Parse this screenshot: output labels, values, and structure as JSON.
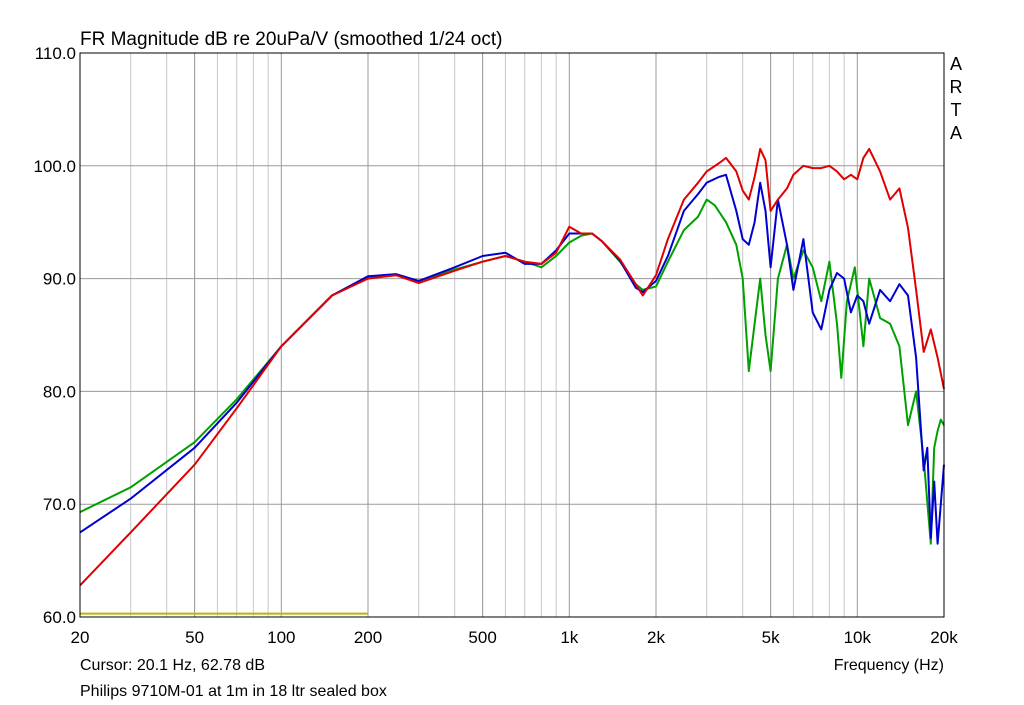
{
  "chart_data": {
    "type": "line",
    "title": "FR Magnitude dB re 20uPa/V (smoothed 1/24 oct)",
    "xlabel": "Frequency (Hz)",
    "ylabel": "",
    "x_scale": "log",
    "xlim": [
      20,
      20000
    ],
    "ylim": [
      60,
      110
    ],
    "grid": true,
    "x_ticks": [
      20,
      50,
      100,
      200,
      500,
      1000,
      2000,
      5000,
      10000,
      20000
    ],
    "x_tick_labels": [
      "20",
      "50",
      "100",
      "200",
      "500",
      "1k",
      "2k",
      "5k",
      "10k",
      "20k"
    ],
    "y_ticks": [
      60,
      70,
      80,
      90,
      100,
      110
    ],
    "y_tick_labels": [
      "60.0",
      "70.0",
      "80.0",
      "90.0",
      "100.0",
      "110.0"
    ],
    "brand": [
      "A",
      "R",
      "T",
      "A"
    ],
    "cursor_text": "Cursor: 20.1 Hz, 62.78 dB",
    "caption": "Philips 9710M-01 at 1m in 18 ltr sealed box",
    "series": [
      {
        "color": "#00a000",
        "points": [
          [
            20,
            69.3
          ],
          [
            30,
            71.5
          ],
          [
            50,
            75.5
          ],
          [
            70,
            79.3
          ],
          [
            100,
            84
          ],
          [
            150,
            88.5
          ],
          [
            200,
            90.1
          ],
          [
            250,
            90.3
          ],
          [
            300,
            89.8
          ],
          [
            400,
            90.8
          ],
          [
            500,
            91.5
          ],
          [
            600,
            92
          ],
          [
            700,
            91.5
          ],
          [
            800,
            91
          ],
          [
            900,
            92
          ],
          [
            1000,
            93.2
          ],
          [
            1100,
            93.8
          ],
          [
            1200,
            94
          ],
          [
            1300,
            93.3
          ],
          [
            1500,
            91.5
          ],
          [
            1700,
            89.5
          ],
          [
            1800,
            89
          ],
          [
            2000,
            89.3
          ],
          [
            2200,
            91.5
          ],
          [
            2500,
            94.3
          ],
          [
            2800,
            95.5
          ],
          [
            3000,
            97
          ],
          [
            3200,
            96.5
          ],
          [
            3500,
            95
          ],
          [
            3800,
            93
          ],
          [
            4000,
            90
          ],
          [
            4200,
            81.8
          ],
          [
            4400,
            86
          ],
          [
            4600,
            90
          ],
          [
            4800,
            85
          ],
          [
            5000,
            81.8
          ],
          [
            5300,
            90
          ],
          [
            5700,
            93
          ],
          [
            6000,
            90
          ],
          [
            6500,
            92.5
          ],
          [
            7000,
            91
          ],
          [
            7500,
            88
          ],
          [
            8000,
            91.5
          ],
          [
            8500,
            86
          ],
          [
            8800,
            81.2
          ],
          [
            9200,
            88
          ],
          [
            9800,
            91
          ],
          [
            10500,
            84
          ],
          [
            11000,
            90
          ],
          [
            12000,
            86.5
          ],
          [
            13000,
            86
          ],
          [
            14000,
            84
          ],
          [
            15000,
            77
          ],
          [
            16000,
            80
          ],
          [
            17000,
            74
          ],
          [
            18000,
            66.5
          ],
          [
            18500,
            75
          ],
          [
            19000,
            76.5
          ],
          [
            19500,
            77.5
          ],
          [
            20000,
            77
          ]
        ]
      },
      {
        "color": "#0000d0",
        "points": [
          [
            20,
            67.5
          ],
          [
            30,
            70.5
          ],
          [
            50,
            75
          ],
          [
            70,
            79
          ],
          [
            100,
            84
          ],
          [
            150,
            88.5
          ],
          [
            200,
            90.2
          ],
          [
            250,
            90.4
          ],
          [
            300,
            89.8
          ],
          [
            400,
            91
          ],
          [
            500,
            92
          ],
          [
            600,
            92.3
          ],
          [
            700,
            91.3
          ],
          [
            800,
            91.3
          ],
          [
            900,
            92.5
          ],
          [
            1000,
            94
          ],
          [
            1100,
            94
          ],
          [
            1200,
            94
          ],
          [
            1300,
            93.3
          ],
          [
            1500,
            91.6
          ],
          [
            1700,
            89.2
          ],
          [
            1800,
            88.8
          ],
          [
            2000,
            89.8
          ],
          [
            2200,
            92
          ],
          [
            2500,
            96
          ],
          [
            2800,
            97.5
          ],
          [
            3000,
            98.5
          ],
          [
            3300,
            99
          ],
          [
            3500,
            99.2
          ],
          [
            3800,
            96
          ],
          [
            4000,
            93.5
          ],
          [
            4200,
            93
          ],
          [
            4400,
            95
          ],
          [
            4600,
            98.5
          ],
          [
            4800,
            96
          ],
          [
            5000,
            91
          ],
          [
            5300,
            97
          ],
          [
            5700,
            93
          ],
          [
            6000,
            89
          ],
          [
            6500,
            93.5
          ],
          [
            7000,
            87
          ],
          [
            7500,
            85.5
          ],
          [
            8000,
            89
          ],
          [
            8500,
            90.5
          ],
          [
            9000,
            90
          ],
          [
            9500,
            87
          ],
          [
            10000,
            88.5
          ],
          [
            10500,
            88
          ],
          [
            11000,
            86
          ],
          [
            12000,
            89
          ],
          [
            13000,
            88
          ],
          [
            14000,
            89.5
          ],
          [
            15000,
            88.5
          ],
          [
            16000,
            83
          ],
          [
            17000,
            73
          ],
          [
            17500,
            75
          ],
          [
            18000,
            67
          ],
          [
            18500,
            72
          ],
          [
            19000,
            66.5
          ],
          [
            19500,
            70
          ],
          [
            20000,
            73.5
          ]
        ]
      },
      {
        "color": "#e00000",
        "points": [
          [
            20,
            62.8
          ],
          [
            30,
            67.5
          ],
          [
            50,
            73.5
          ],
          [
            70,
            78.5
          ],
          [
            100,
            84
          ],
          [
            150,
            88.5
          ],
          [
            200,
            90
          ],
          [
            250,
            90.3
          ],
          [
            300,
            89.6
          ],
          [
            400,
            90.7
          ],
          [
            500,
            91.5
          ],
          [
            600,
            92
          ],
          [
            700,
            91.5
          ],
          [
            800,
            91.3
          ],
          [
            900,
            92.3
          ],
          [
            1000,
            94.6
          ],
          [
            1100,
            94
          ],
          [
            1200,
            94
          ],
          [
            1300,
            93.3
          ],
          [
            1500,
            91.7
          ],
          [
            1700,
            89.5
          ],
          [
            1800,
            88.5
          ],
          [
            2000,
            90.3
          ],
          [
            2200,
            93.5
          ],
          [
            2500,
            97
          ],
          [
            2800,
            98.5
          ],
          [
            3000,
            99.5
          ],
          [
            3300,
            100.2
          ],
          [
            3500,
            100.7
          ],
          [
            3800,
            99.5
          ],
          [
            4000,
            97.8
          ],
          [
            4200,
            97
          ],
          [
            4400,
            99
          ],
          [
            4600,
            101.5
          ],
          [
            4800,
            100.5
          ],
          [
            5000,
            96
          ],
          [
            5300,
            97
          ],
          [
            5700,
            98
          ],
          [
            6000,
            99.2
          ],
          [
            6500,
            100
          ],
          [
            7000,
            99.8
          ],
          [
            7500,
            99.8
          ],
          [
            8000,
            100
          ],
          [
            8500,
            99.5
          ],
          [
            9000,
            98.8
          ],
          [
            9500,
            99.2
          ],
          [
            10000,
            98.8
          ],
          [
            10500,
            100.7
          ],
          [
            11000,
            101.5
          ],
          [
            12000,
            99.5
          ],
          [
            13000,
            97
          ],
          [
            14000,
            98
          ],
          [
            15000,
            94.5
          ],
          [
            16000,
            89
          ],
          [
            17000,
            83.5
          ],
          [
            18000,
            85.5
          ],
          [
            19000,
            83
          ],
          [
            20000,
            80.2
          ]
        ]
      }
    ],
    "flat_series": {
      "color": "#b8b800",
      "x": [
        20,
        200
      ],
      "y": 60.3
    }
  }
}
